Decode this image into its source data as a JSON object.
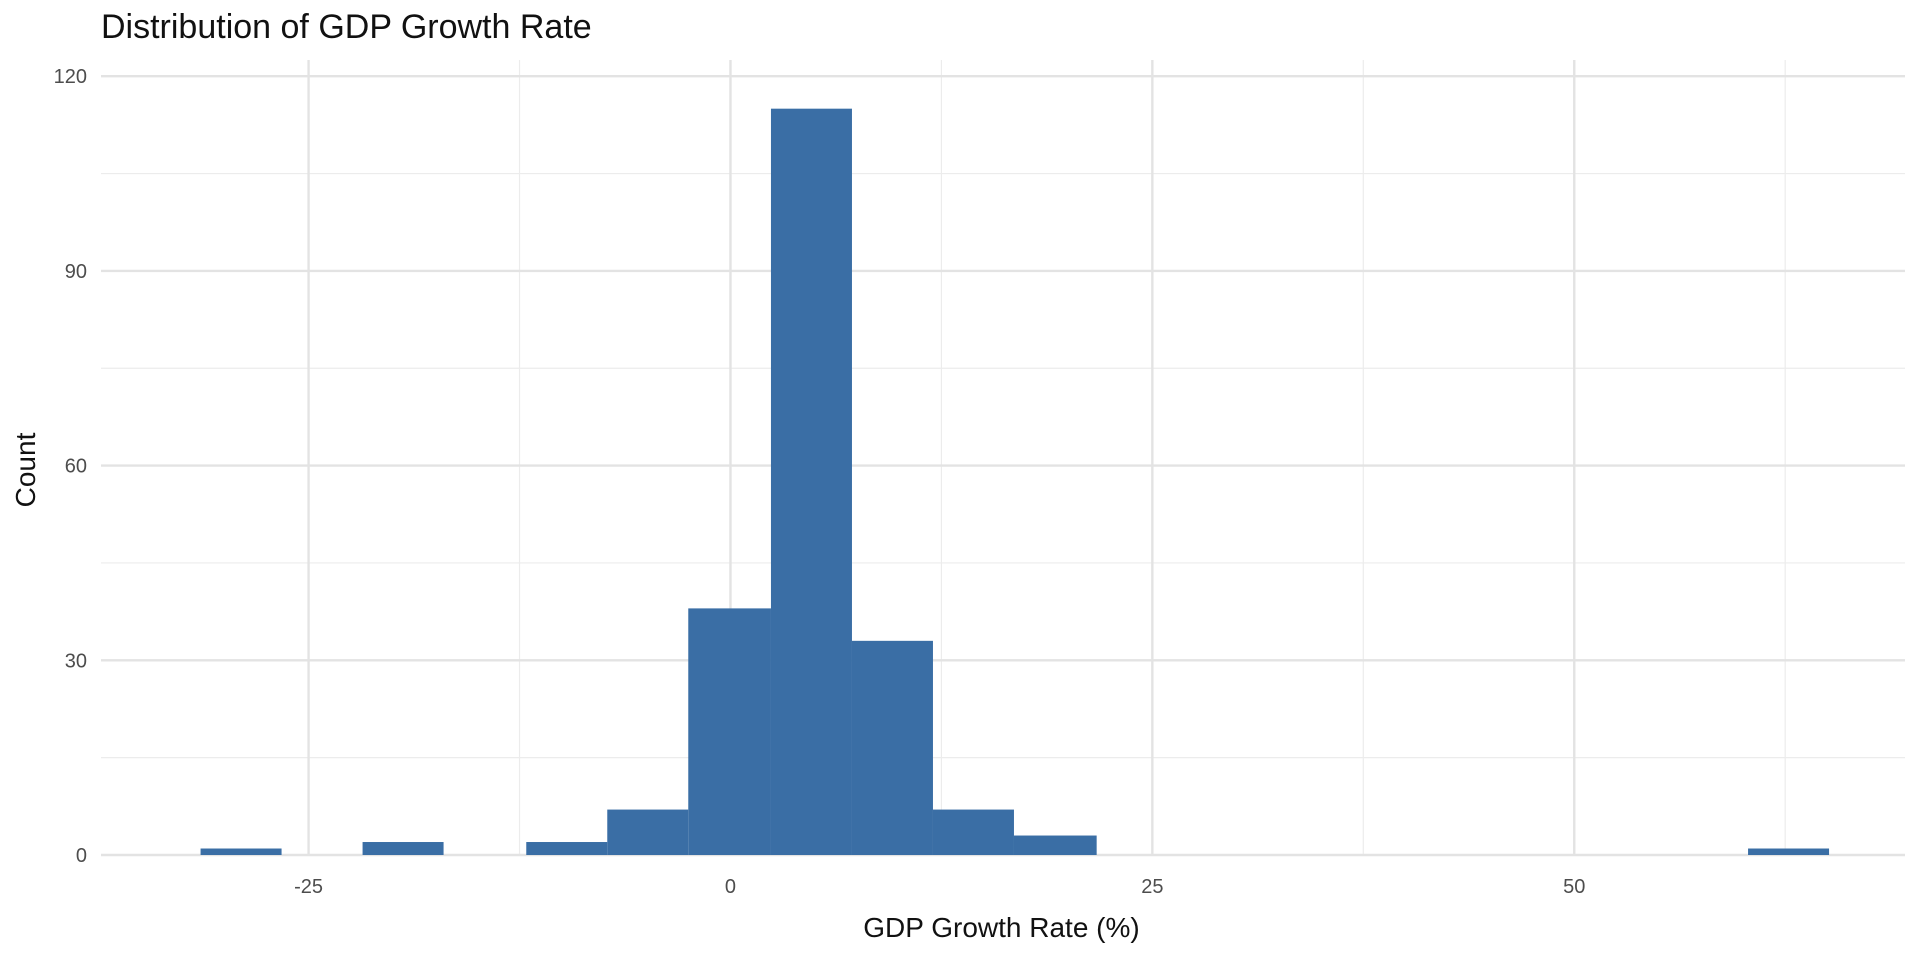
{
  "chart_data": {
    "type": "bar",
    "title": "Distribution of GDP Growth Rate",
    "xlabel": "GDP Growth Rate (%)",
    "ylabel": "Count",
    "xlim": [
      -37.3,
      69.6
    ],
    "ylim": [
      0,
      122.5
    ],
    "x_ticks": [
      -25,
      0,
      25,
      50
    ],
    "y_ticks": [
      0,
      30,
      60,
      90,
      120
    ],
    "grid": true,
    "bar_color": "#3a6ea5",
    "bins": [
      {
        "x0": -31.4,
        "x1": -26.6,
        "count": 1
      },
      {
        "x0": -21.8,
        "x1": -17.0,
        "count": 2
      },
      {
        "x0": -12.1,
        "x1": -7.3,
        "count": 2
      },
      {
        "x0": -7.3,
        "x1": -2.5,
        "count": 7
      },
      {
        "x0": -2.5,
        "x1": 2.4,
        "count": 38
      },
      {
        "x0": 2.4,
        "x1": 7.2,
        "count": 115
      },
      {
        "x0": 7.2,
        "x1": 12.0,
        "count": 33
      },
      {
        "x0": 12.0,
        "x1": 16.8,
        "count": 7
      },
      {
        "x0": 16.8,
        "x1": 21.7,
        "count": 3
      },
      {
        "x0": 60.3,
        "x1": 65.1,
        "count": 1
      }
    ]
  }
}
